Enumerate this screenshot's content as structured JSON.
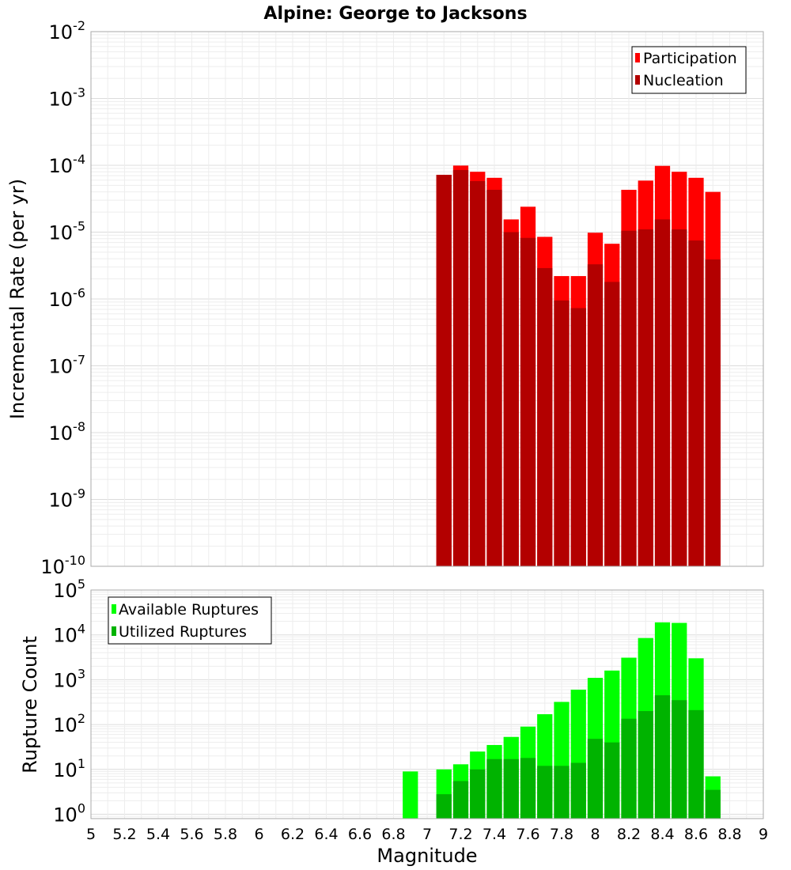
{
  "chart_data": {
    "title": "Alpine: George to Jacksons",
    "x": {
      "label": "Magnitude",
      "range": [
        5,
        9
      ],
      "ticks": [
        "5",
        "5.2",
        "5.4",
        "5.6",
        "5.8",
        "6",
        "6.2",
        "6.4",
        "6.6",
        "6.8",
        "7",
        "7.2",
        "7.4",
        "7.6",
        "7.8",
        "8",
        "8.2",
        "8.4",
        "8.6",
        "8.8",
        "9"
      ],
      "bin_width": 0.1
    },
    "panels": [
      {
        "type": "bar",
        "scale": "log",
        "ylabel": "Incremental Rate (per yr)",
        "ylim": [
          1e-10,
          0.01
        ],
        "ytick_exponents": [
          -10,
          -9,
          -8,
          -7,
          -6,
          -5,
          -4,
          -3,
          -2
        ],
        "grid": true,
        "legend_position": "top-right",
        "series": [
          {
            "name": "Participation",
            "color": "#ff0000",
            "x": [
              7.1,
              7.2,
              7.3,
              7.4,
              7.5,
              7.6,
              7.7,
              7.8,
              7.9,
              8.0,
              8.1,
              8.2,
              8.3,
              8.4,
              8.5,
              8.6,
              8.7
            ],
            "values": [
              7.2e-05,
              9.9e-05,
              8e-05,
              6.5e-05,
              1.55e-05,
              2.4e-05,
              8.5e-06,
              2.2e-06,
              2.2e-06,
              9.8e-06,
              6.7e-06,
              4.3e-05,
              5.9e-05,
              9.8e-05,
              8e-05,
              6.5e-05,
              4e-05
            ]
          },
          {
            "name": "Nucleation",
            "color": "#b30000",
            "x": [
              7.1,
              7.2,
              7.3,
              7.4,
              7.5,
              7.6,
              7.7,
              7.8,
              7.9,
              8.0,
              8.1,
              8.2,
              8.3,
              8.4,
              8.5,
              8.6,
              8.7
            ],
            "values": [
              7.2e-05,
              8.5e-05,
              5.8e-05,
              4.3e-05,
              1e-05,
              8.2e-06,
              2.9e-06,
              9.5e-07,
              7.3e-07,
              3.3e-06,
              1.8e-06,
              1.05e-05,
              1.1e-05,
              1.55e-05,
              1.1e-05,
              7.5e-06,
              3.9e-06
            ]
          }
        ]
      },
      {
        "type": "bar",
        "scale": "log",
        "ylabel": "Rupture Count",
        "ylim": [
          0.8,
          100000.0
        ],
        "ytick_exponents": [
          0,
          1,
          2,
          3,
          4,
          5
        ],
        "grid": true,
        "legend_position": "top-left",
        "series": [
          {
            "name": "Available Ruptures",
            "color": "#00ff00",
            "x": [
              6.9,
              7.1,
              7.2,
              7.3,
              7.4,
              7.5,
              7.6,
              7.7,
              7.8,
              7.9,
              8.0,
              8.1,
              8.2,
              8.3,
              8.4,
              8.5,
              8.6,
              8.7
            ],
            "values": [
              9,
              10,
              13,
              25,
              35,
              53,
              90,
              170,
              320,
              600,
              1100,
              1600,
              3100,
              8500,
              19000,
              18500,
              3000,
              7
            ]
          },
          {
            "name": "Utilized Ruptures",
            "color": "#00b300",
            "x": [
              7.1,
              7.2,
              7.3,
              7.4,
              7.5,
              7.6,
              7.7,
              7.8,
              7.9,
              8.0,
              8.1,
              8.2,
              8.3,
              8.4,
              8.5,
              8.6,
              8.7
            ],
            "values": [
              2.8,
              5.5,
              10,
              17,
              17,
              18,
              12,
              12,
              14,
              48,
              40,
              135,
              200,
              450,
              350,
              210,
              3.5
            ]
          }
        ]
      }
    ]
  }
}
